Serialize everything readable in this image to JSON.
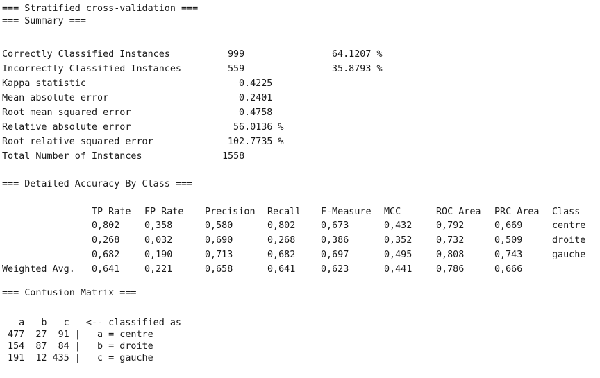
{
  "header": {
    "line1": "=== Stratified cross-validation ===",
    "line2": "=== Summary ==="
  },
  "summary": {
    "rows": [
      {
        "label": "Correctly Classified Instances",
        "value": "999",
        "pct": "64.1207 %"
      },
      {
        "label": "Incorrectly Classified Instances",
        "value": "559",
        "pct": "35.8793 %"
      },
      {
        "label": "Kappa statistic",
        "value": "0.4225"
      },
      {
        "label": "Mean absolute error",
        "value": "0.2401"
      },
      {
        "label": "Root mean squared error",
        "value": "0.4758"
      },
      {
        "label": "Relative absolute error",
        "value": "56.0136 %"
      },
      {
        "label": "Root relative squared error",
        "value": "102.7735 %"
      },
      {
        "label": "Total Number of Instances",
        "value": "1558"
      }
    ]
  },
  "detailed": {
    "title": "=== Detailed Accuracy By Class ===",
    "headers": [
      "TP Rate",
      "FP Rate",
      "Precision",
      "Recall",
      "F-Measure",
      "MCC",
      "ROC Area",
      "PRC Area",
      "Class"
    ],
    "rows": [
      {
        "label": "",
        "cells": [
          "0,802",
          "0,358",
          "0,580",
          "0,802",
          "0,673",
          "0,432",
          "0,792",
          "0,669",
          "centre"
        ]
      },
      {
        "label": "",
        "cells": [
          "0,268",
          "0,032",
          "0,690",
          "0,268",
          "0,386",
          "0,352",
          "0,732",
          "0,509",
          "droite"
        ]
      },
      {
        "label": "",
        "cells": [
          "0,682",
          "0,190",
          "0,713",
          "0,682",
          "0,697",
          "0,495",
          "0,808",
          "0,743",
          "gauche"
        ]
      },
      {
        "label": "Weighted Avg.",
        "cells": [
          "0,641",
          "0,221",
          "0,658",
          "0,641",
          "0,623",
          "0,441",
          "0,786",
          "0,666",
          ""
        ]
      }
    ]
  },
  "confusion": {
    "title": "=== Confusion Matrix ===",
    "lines": [
      "   a   b   c   <-- classified as",
      " 477  27  91 |   a = centre",
      " 154  87  84 |   b = droite",
      " 191  12 435 |   c = gauche"
    ]
  }
}
